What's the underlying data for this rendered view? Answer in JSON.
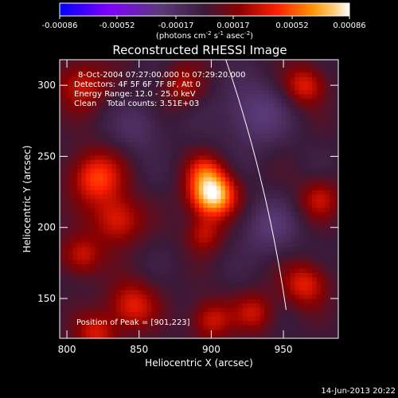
{
  "colorbar": {
    "ticks": [
      "-0.00086",
      "-0.00052",
      "-0.00017",
      "0.00017",
      "0.00052",
      "0.00086"
    ],
    "tick_values": [
      -0.00086,
      -0.00052,
      -0.00017,
      0.00017,
      0.00052,
      0.00086
    ],
    "units_main": "(photons cm",
    "units_sup1": "-2",
    "units_mid": " s",
    "units_sup2": "-1",
    "units_mid2": " asec",
    "units_sup3": "-2",
    "units_end": ")",
    "range": [
      -0.00086,
      0.00086
    ]
  },
  "chart_data": {
    "type": "heatmap",
    "title": "Reconstructed RHESSI Image",
    "xlabel": "Heliocentric X (arcsec)",
    "ylabel": "Heliocentric Y (arcsec)",
    "x_ticks": [
      800,
      850,
      900,
      950
    ],
    "y_ticks": [
      150,
      200,
      250,
      300
    ],
    "xlim": [
      795,
      988
    ],
    "ylim": [
      122,
      318
    ],
    "grid": false,
    "colormap": [
      "#0000ff",
      "#7f00ff",
      "#5a3a78",
      "#3a1a3a",
      "#8b0000",
      "#ff2000",
      "#ff9000",
      "#ffd080",
      "#ffffff"
    ],
    "sources": [
      {
        "x": 901,
        "y": 223,
        "amp": 1.0,
        "sigma": 11
      },
      {
        "x": 895,
        "y": 240,
        "amp": 0.35,
        "sigma": 9
      },
      {
        "x": 895,
        "y": 195,
        "amp": 0.35,
        "sigma": 9
      },
      {
        "x": 820,
        "y": 235,
        "amp": 0.55,
        "sigma": 13
      },
      {
        "x": 835,
        "y": 205,
        "amp": 0.45,
        "sigma": 12
      },
      {
        "x": 810,
        "y": 180,
        "amp": 0.4,
        "sigma": 10
      },
      {
        "x": 845,
        "y": 145,
        "amp": 0.45,
        "sigma": 12
      },
      {
        "x": 820,
        "y": 125,
        "amp": 0.4,
        "sigma": 10
      },
      {
        "x": 810,
        "y": 300,
        "amp": 0.4,
        "sigma": 12
      },
      {
        "x": 880,
        "y": 300,
        "amp": 0.3,
        "sigma": 10
      },
      {
        "x": 965,
        "y": 300,
        "amp": 0.45,
        "sigma": 10
      },
      {
        "x": 975,
        "y": 220,
        "amp": 0.35,
        "sigma": 10
      },
      {
        "x": 965,
        "y": 160,
        "amp": 0.45,
        "sigma": 11
      },
      {
        "x": 930,
        "y": 140,
        "amp": 0.35,
        "sigma": 10
      },
      {
        "x": 900,
        "y": 135,
        "amp": 0.4,
        "sigma": 10
      },
      {
        "x": 940,
        "y": 200,
        "amp": -0.25,
        "sigma": 14
      },
      {
        "x": 930,
        "y": 280,
        "amp": -0.3,
        "sigma": 16
      },
      {
        "x": 850,
        "y": 270,
        "amp": -0.2,
        "sigma": 12
      }
    ],
    "annotations": {
      "time_range": "8-Oct-2004 07:27:00.000 to 07:29:20.000",
      "detectors": "Detectors: 4F 5F 6F 7F 8F, Att 0",
      "energy": "Energy Range: 12.0 - 25.0 keV",
      "clean": "Clean    Total counts: 3.51E+03",
      "peak": "Position of Peak = [901,223]"
    },
    "limb": {
      "radius": 1000,
      "center": [
        0,
        0
      ]
    }
  },
  "footer": {
    "date": "14-Jun-2013 20:22"
  }
}
